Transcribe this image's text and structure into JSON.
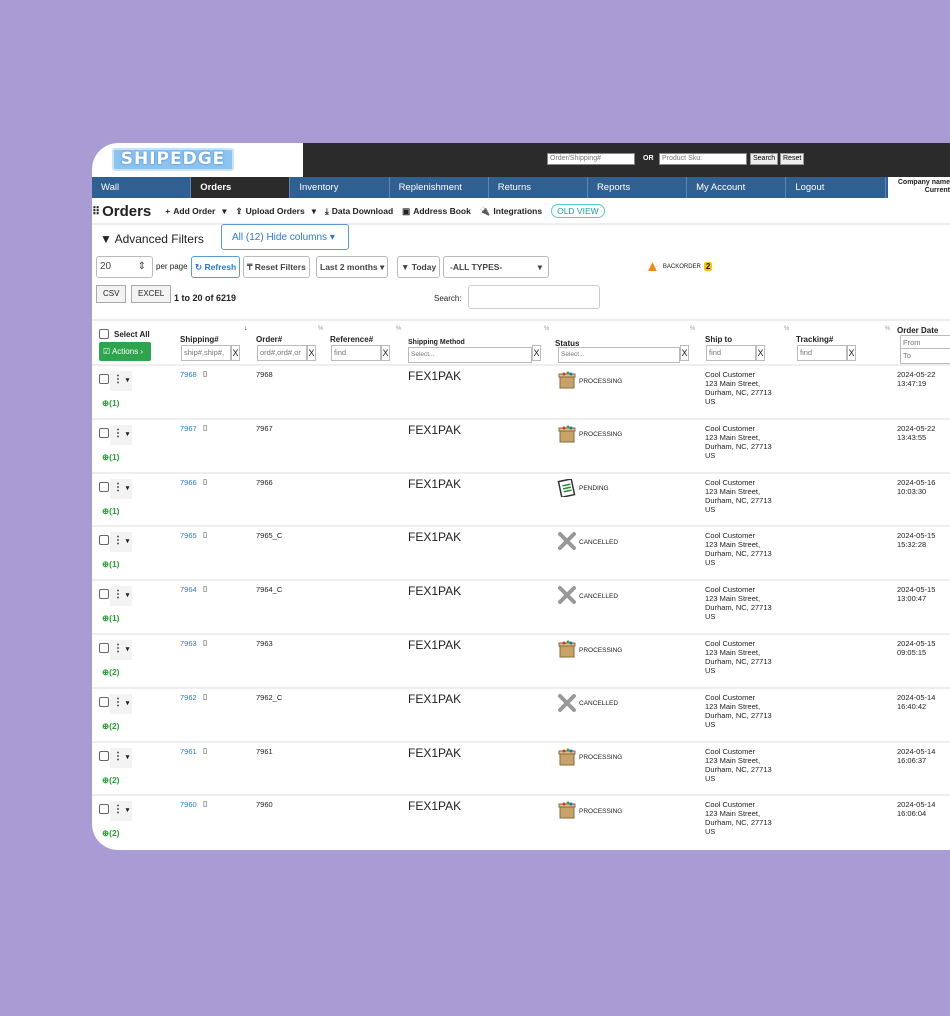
{
  "header": {
    "logo": "SHIPEDGE",
    "order_placeholder": "Order/Shipping#",
    "or": "OR",
    "sku_placeholder": "Product Sku:",
    "search": "Search",
    "reset": "Reset",
    "company": "Company name",
    "company2": "Current"
  },
  "nav": [
    "Wall",
    "Orders",
    "Inventory",
    "Replenishment",
    "Returns",
    "Reports",
    "My Account",
    "Logout"
  ],
  "toolbar": {
    "title": "Orders",
    "add_order": "Add Order",
    "upload_orders": "Upload Orders",
    "data_download": "Data Download",
    "address_book": "Address Book",
    "integrations": "Integrations",
    "old_view": "OLD VIEW"
  },
  "filters": {
    "advanced": "Advanced Filters",
    "hide_columns": "All (12)  Hide columns",
    "per_page_value": "20",
    "per_page": "per page",
    "refresh": "Refresh",
    "reset_filters": "Reset Filters",
    "range": "Last 2 months",
    "today": "Today",
    "types": "-ALL TYPES-",
    "backorder": "BACKORDER",
    "backorder_count": "2",
    "csv": "CSV",
    "excel": "EXCEL",
    "count": "1 to 20 of 6219",
    "search_label": "Search:"
  },
  "columns": {
    "select_all": "Select All",
    "actions": "Actions",
    "shipping": "Shipping#",
    "shipping_ph": "ship#,ship#,",
    "order": "Order#",
    "order_ph": "ord#,ord#,or",
    "reference": "Reference#",
    "find": "find",
    "method": "Shipping Method",
    "select": "Select...",
    "status": "Status",
    "ship_to": "Ship to",
    "tracking": "Tracking#",
    "order_date": "Order Date",
    "from": "From",
    "to": "To",
    "clear": "X"
  },
  "rows": [
    {
      "ship": "7968",
      "order": "7968",
      "method": "FEX1PAK",
      "status": "PROCESSING",
      "icon": "box",
      "name": "Cool Customer",
      "street": "123 Main Street,",
      "city": "Durham, NC, 27713",
      "country": "US",
      "date": "2024-05-22",
      "time": "13:47:19",
      "items": "(1)"
    },
    {
      "ship": "7967",
      "order": "7967",
      "method": "FEX1PAK",
      "status": "PROCESSING",
      "icon": "box",
      "name": "Cool Customer",
      "street": "123 Main Street,",
      "city": "Durham, NC, 27713",
      "country": "US",
      "date": "2024-05-22",
      "time": "13:43:55",
      "items": "(1)"
    },
    {
      "ship": "7966",
      "order": "7966",
      "method": "FEX1PAK",
      "status": "PENDING",
      "icon": "list",
      "name": "Cool Customer",
      "street": "123 Main Street,",
      "city": "Durham, NC, 27713",
      "country": "US",
      "date": "2024-05-16",
      "time": "10:03:30",
      "items": "(1)"
    },
    {
      "ship": "7965",
      "order": "7965_C",
      "method": "FEX1PAK",
      "status": "CANCELLED",
      "icon": "x",
      "name": "Cool Customer",
      "street": "123 Main Street,",
      "city": "Durham, NC, 27713",
      "country": "US",
      "date": "2024-05-15",
      "time": "15:32:28",
      "items": "(1)"
    },
    {
      "ship": "7964",
      "order": "7964_C",
      "method": "FEX1PAK",
      "status": "CANCELLED",
      "icon": "x",
      "name": "Cool Customer",
      "street": "123 Main Street,",
      "city": "Durham, NC, 27713",
      "country": "US",
      "date": "2024-05-15",
      "time": "13:00:47",
      "items": "(1)"
    },
    {
      "ship": "7963",
      "order": "7963",
      "method": "FEX1PAK",
      "status": "PROCESSING",
      "icon": "box",
      "name": "Cool Customer",
      "street": "123 Main Street,",
      "city": "Durham, NC, 27713",
      "country": "US",
      "date": "2024-05-15",
      "time": "09:05:15",
      "items": "(2)"
    },
    {
      "ship": "7962",
      "order": "7962_C",
      "method": "FEX1PAK",
      "status": "CANCELLED",
      "icon": "x",
      "name": "Cool Customer",
      "street": "123 Main Street,",
      "city": "Durham, NC, 27713",
      "country": "US",
      "date": "2024-05-14",
      "time": "16:40:42",
      "items": "(2)"
    },
    {
      "ship": "7961",
      "order": "7961",
      "method": "FEX1PAK",
      "status": "PROCESSING",
      "icon": "box",
      "name": "Cool Customer",
      "street": "123 Main Street,",
      "city": "Durham, NC, 27713",
      "country": "US",
      "date": "2024-05-14",
      "time": "16:06:37",
      "items": "(2)"
    },
    {
      "ship": "7960",
      "order": "7960",
      "method": "FEX1PAK",
      "status": "PROCESSING",
      "icon": "box",
      "name": "Cool Customer",
      "street": "123 Main Street,",
      "city": "Durham, NC, 27713",
      "country": "US",
      "date": "2024-05-14",
      "time": "16:06:04",
      "items": "(2)"
    }
  ]
}
